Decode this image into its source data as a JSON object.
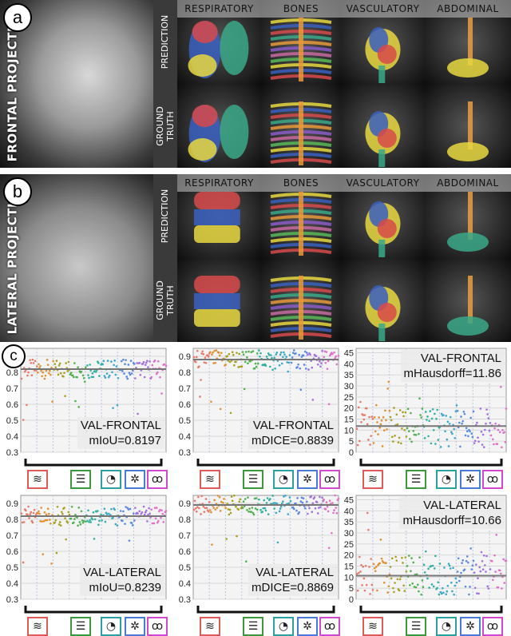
{
  "panel_a": {
    "badge": "a",
    "projection": "FRONTAL PROJECTION",
    "rows": [
      "PREDICTION",
      "GROUND TRUTH"
    ],
    "columns": [
      "RESPIRATORY",
      "BONES",
      "VASCULATORY",
      "ABDOMINAL"
    ]
  },
  "panel_b": {
    "badge": "b",
    "projection": "LATERAL PROJECTION",
    "rows": [
      "PREDICTION",
      "GROUND TRUTH"
    ],
    "columns": [
      "RESPIRATORY",
      "BONES",
      "VASCULATORY",
      "ABDOMINAL"
    ]
  },
  "panel_c": {
    "badge": "c",
    "icons": [
      "spine-icon",
      "ribcage-icon",
      "stomach-icon",
      "airway-icon",
      "lungs-icon"
    ],
    "icon_colors": [
      "#e05a5a",
      "#3a9a3a",
      "#2aa0a0",
      "#4a7ad8",
      "#d04ad0"
    ]
  },
  "chart_data": [
    {
      "type": "scatter",
      "annotation": [
        "VAL-FRONTAL",
        "mIoU=0.8197"
      ],
      "yticks": [
        0.3,
        0.4,
        0.5,
        0.6,
        0.7,
        0.8,
        0.9
      ],
      "ylim": [
        0.3,
        0.95
      ],
      "mean": 0.82
    },
    {
      "type": "scatter",
      "annotation": [
        "VAL-FRONTAL",
        "mDICE=0.8839"
      ],
      "yticks": [
        0.3,
        0.4,
        0.5,
        0.6,
        0.7,
        0.8,
        0.9
      ],
      "ylim": [
        0.3,
        0.95
      ],
      "mean": 0.88
    },
    {
      "type": "scatter",
      "annotation": [
        "VAL-FRONTAL",
        "mHausdorff=11.86"
      ],
      "yticks": [
        0,
        5,
        10,
        15,
        20,
        25,
        30,
        35,
        40,
        45
      ],
      "ylim": [
        0,
        47
      ],
      "mean": 11.86
    },
    {
      "type": "scatter",
      "annotation": [
        "VAL-LATERAL",
        "mIoU=0.8239"
      ],
      "yticks": [
        0.3,
        0.4,
        0.5,
        0.6,
        0.7,
        0.8,
        0.9
      ],
      "ylim": [
        0.3,
        0.95
      ],
      "mean": 0.82
    },
    {
      "type": "scatter",
      "annotation": [
        "VAL-LATERAL",
        "mDICE=0.8869"
      ],
      "yticks": [
        0.3,
        0.4,
        0.5,
        0.6,
        0.7,
        0.8,
        0.9
      ],
      "ylim": [
        0.3,
        0.95
      ],
      "mean": 0.89
    },
    {
      "type": "scatter",
      "annotation": [
        "VAL-LATERAL",
        "mHausdorff=10.66"
      ],
      "yticks": [
        0,
        5,
        10,
        15,
        20,
        25,
        30,
        35,
        40,
        45
      ],
      "ylim": [
        0,
        47
      ],
      "mean": 10.66
    }
  ]
}
